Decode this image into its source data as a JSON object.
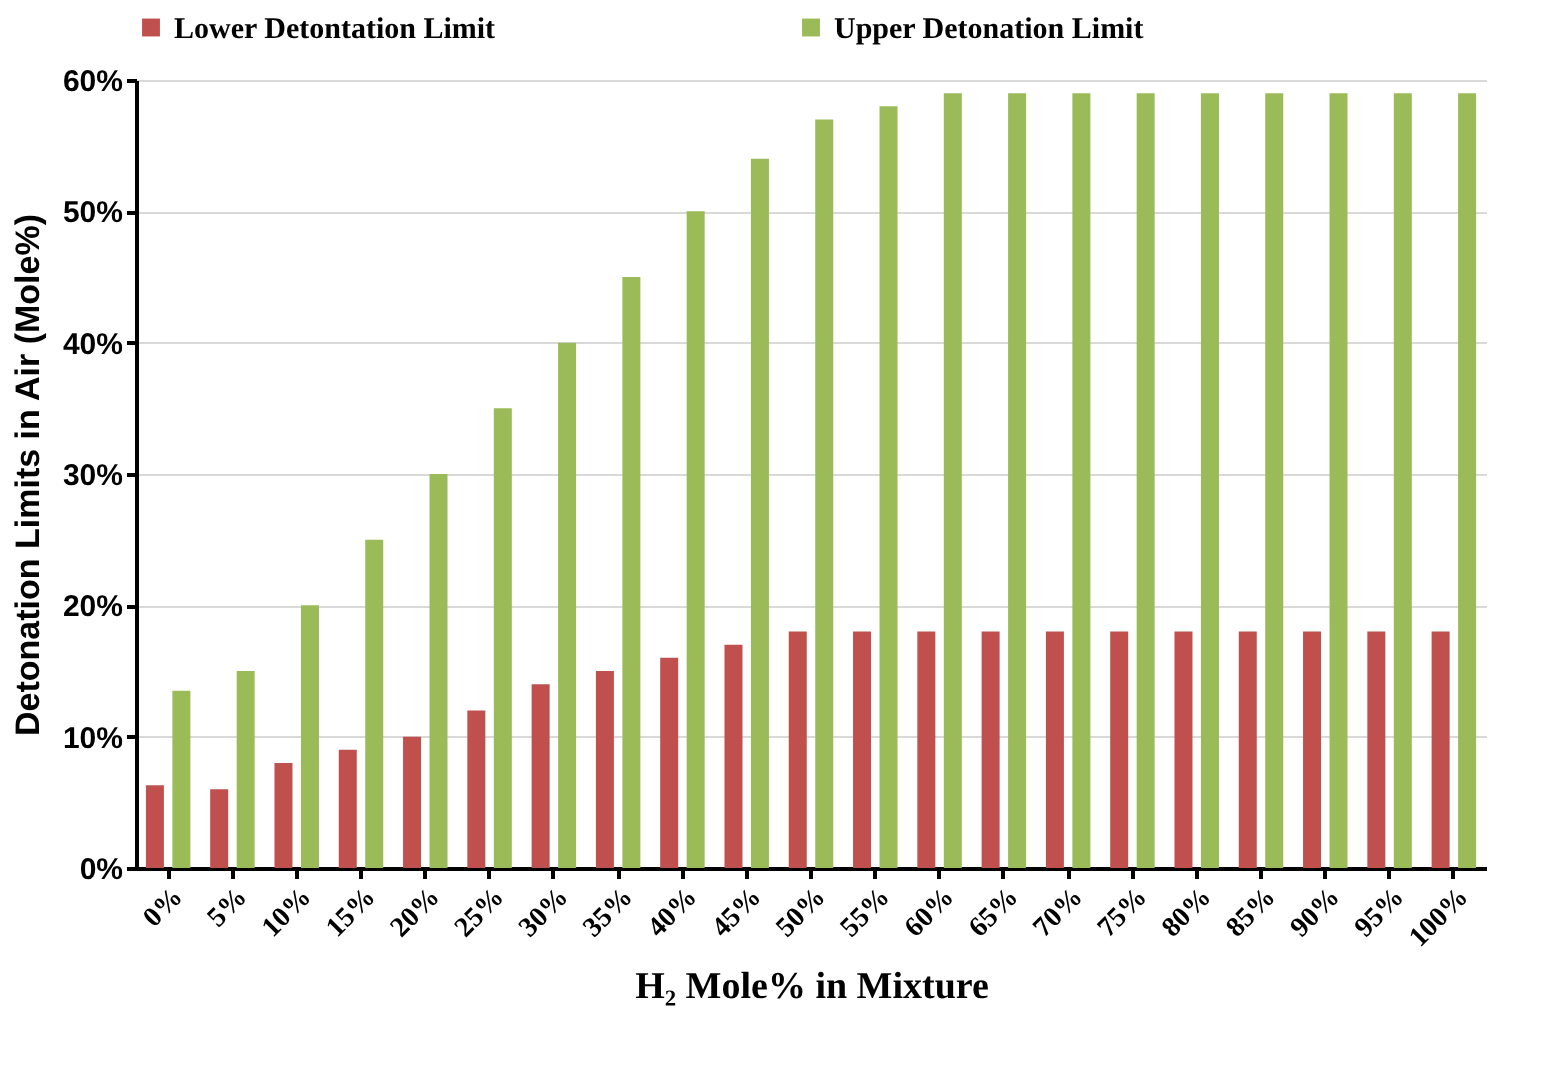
{
  "chart_data": {
    "type": "bar",
    "xlabel": "H₂ Mole% in Mixture",
    "ylabel": "Detonation Limits in Air (Mole%)",
    "categories": [
      "0%",
      "5%",
      "10%",
      "15%",
      "20%",
      "25%",
      "30%",
      "35%",
      "40%",
      "45%",
      "50%",
      "55%",
      "60%",
      "65%",
      "70%",
      "75%",
      "80%",
      "85%",
      "90%",
      "95%",
      "100%"
    ],
    "series": [
      {
        "name": "Lower Detontation Limit",
        "color": "#c0504d",
        "values": [
          6.3,
          6,
          8,
          9,
          10,
          12,
          14,
          15,
          16,
          17,
          18,
          18,
          18,
          18,
          18,
          18,
          18,
          18,
          18,
          18,
          18
        ]
      },
      {
        "name": "Upper Detonation Limit",
        "color": "#9bbb59",
        "values": [
          13.5,
          15,
          20,
          25,
          30,
          35,
          40,
          45,
          50,
          54,
          57,
          58,
          59,
          59,
          59,
          59,
          59,
          59,
          59,
          59,
          59
        ]
      }
    ],
    "ylim": [
      0,
      60
    ],
    "yticks": [
      {
        "value": 0,
        "label": "0%"
      },
      {
        "value": 10,
        "label": "10%"
      },
      {
        "value": 20,
        "label": "20%"
      },
      {
        "value": 30,
        "label": "30%"
      },
      {
        "value": 40,
        "label": "40%"
      },
      {
        "value": 50,
        "label": "50%"
      },
      {
        "value": 60,
        "label": "60%"
      }
    ],
    "grid": "y",
    "legend": "top"
  }
}
